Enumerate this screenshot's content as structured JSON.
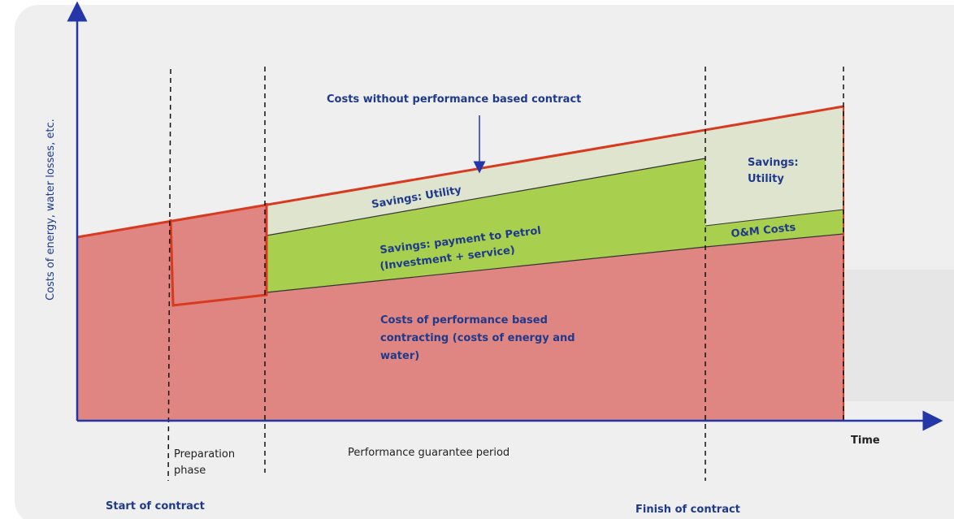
{
  "diagram": {
    "y_axis_label": "Costs of energy, water losses, etc.",
    "x_axis_label": "Time",
    "regions": {
      "costs_without": "Costs without performance based contract",
      "savings_utility": "Savings: Utility",
      "savings_payment_1": "Savings: payment to Petrol",
      "savings_payment_2": "(Investment + service)",
      "costs_with_1": "Costs of performance based",
      "costs_with_2": "contracting (costs of energy and",
      "costs_with_3": "water)",
      "savings_utility_after": "Savings:",
      "savings_utility_after_2": "Utility",
      "om_costs": "O&M Costs"
    },
    "phases": {
      "preparation_1": "Preparation",
      "preparation_2": "phase",
      "guarantee": "Performance guarantee period",
      "start": "Start of contract",
      "finish": "Finish of contract"
    }
  }
}
